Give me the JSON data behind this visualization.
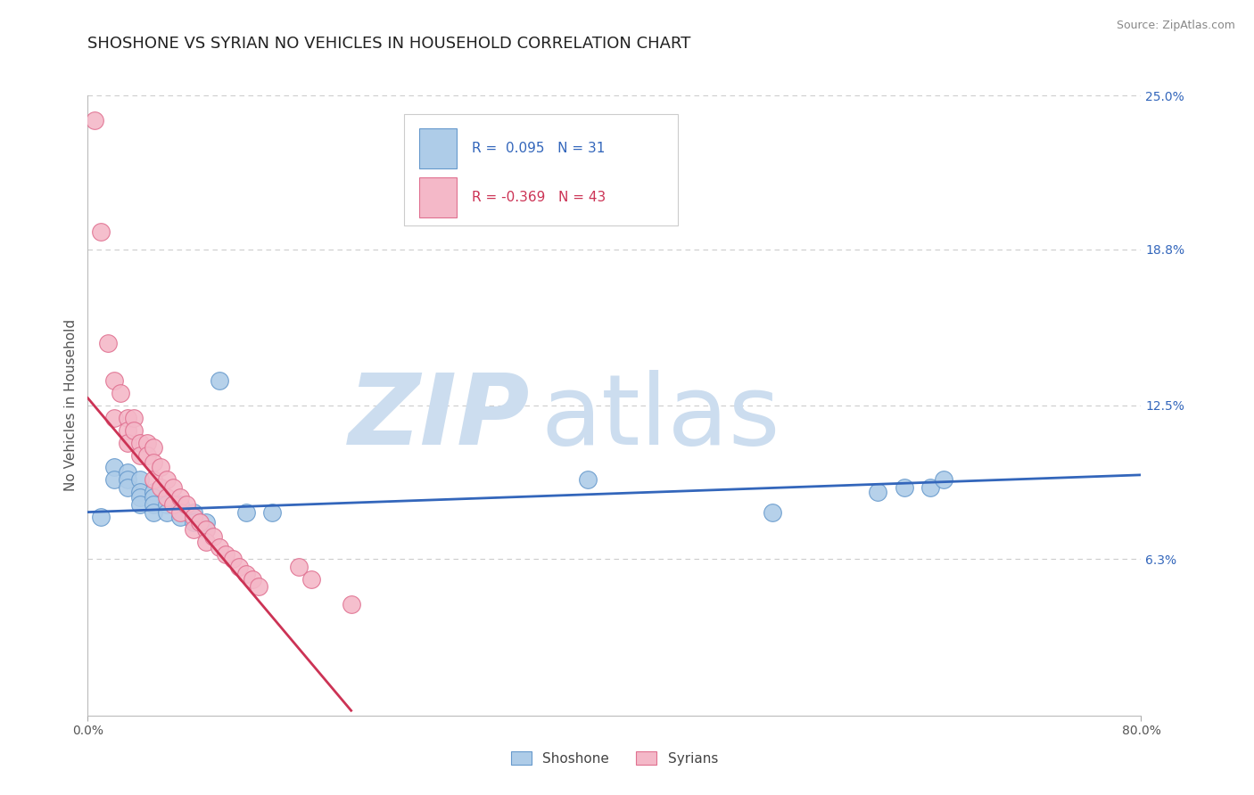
{
  "title": "SHOSHONE VS SYRIAN NO VEHICLES IN HOUSEHOLD CORRELATION CHART",
  "source_text": "Source: ZipAtlas.com",
  "ylabel": "No Vehicles in Household",
  "xlim": [
    0.0,
    0.8
  ],
  "ylim": [
    0.0,
    0.25
  ],
  "ytick_labels": [
    "6.3%",
    "12.5%",
    "18.8%",
    "25.0%"
  ],
  "ytick_positions": [
    0.063,
    0.125,
    0.188,
    0.25
  ],
  "shoshone": {
    "color": "#aecce8",
    "edge_color": "#6699cc",
    "R": 0.095,
    "N": 31,
    "x": [
      0.01,
      0.02,
      0.02,
      0.03,
      0.03,
      0.03,
      0.04,
      0.04,
      0.04,
      0.04,
      0.05,
      0.05,
      0.05,
      0.05,
      0.06,
      0.06,
      0.07,
      0.07,
      0.08,
      0.08,
      0.09,
      0.09,
      0.1,
      0.12,
      0.14,
      0.38,
      0.52,
      0.6,
      0.62,
      0.64,
      0.65
    ],
    "y": [
      0.08,
      0.1,
      0.095,
      0.098,
      0.095,
      0.092,
      0.095,
      0.09,
      0.088,
      0.085,
      0.09,
      0.088,
      0.085,
      0.082,
      0.085,
      0.082,
      0.085,
      0.08,
      0.082,
      0.078,
      0.078,
      0.075,
      0.135,
      0.082,
      0.082,
      0.095,
      0.082,
      0.09,
      0.092,
      0.092,
      0.095
    ]
  },
  "syrians": {
    "color": "#f4b8c8",
    "edge_color": "#e07090",
    "R": -0.369,
    "N": 43,
    "x": [
      0.005,
      0.01,
      0.015,
      0.02,
      0.02,
      0.025,
      0.03,
      0.03,
      0.03,
      0.035,
      0.035,
      0.04,
      0.04,
      0.045,
      0.045,
      0.05,
      0.05,
      0.05,
      0.055,
      0.055,
      0.06,
      0.06,
      0.065,
      0.065,
      0.07,
      0.07,
      0.075,
      0.08,
      0.08,
      0.085,
      0.09,
      0.09,
      0.095,
      0.1,
      0.105,
      0.11,
      0.115,
      0.12,
      0.125,
      0.13,
      0.16,
      0.17,
      0.2
    ],
    "y": [
      0.24,
      0.195,
      0.15,
      0.135,
      0.12,
      0.13,
      0.12,
      0.115,
      0.11,
      0.12,
      0.115,
      0.11,
      0.105,
      0.11,
      0.105,
      0.108,
      0.102,
      0.095,
      0.1,
      0.092,
      0.095,
      0.088,
      0.092,
      0.085,
      0.088,
      0.082,
      0.085,
      0.08,
      0.075,
      0.078,
      0.075,
      0.07,
      0.072,
      0.068,
      0.065,
      0.063,
      0.06,
      0.057,
      0.055,
      0.052,
      0.06,
      0.055,
      0.045
    ]
  },
  "shoshone_line": {
    "x0": 0.0,
    "y0": 0.082,
    "x1": 0.8,
    "y1": 0.097
  },
  "syrians_line": {
    "x0": 0.0,
    "y0": 0.128,
    "x1": 0.2,
    "y1": 0.002
  },
  "shoshone_line_color": "#3366bb",
  "syrians_line_color": "#cc3355",
  "background_color": "#ffffff",
  "watermark_color": "#ccddef",
  "title_fontsize": 13,
  "axis_label_fontsize": 11,
  "tick_fontsize": 10,
  "legend_R_color_shoshone": "#3366bb",
  "legend_R_color_syrians": "#cc3355",
  "legend_text_color": "#333333"
}
